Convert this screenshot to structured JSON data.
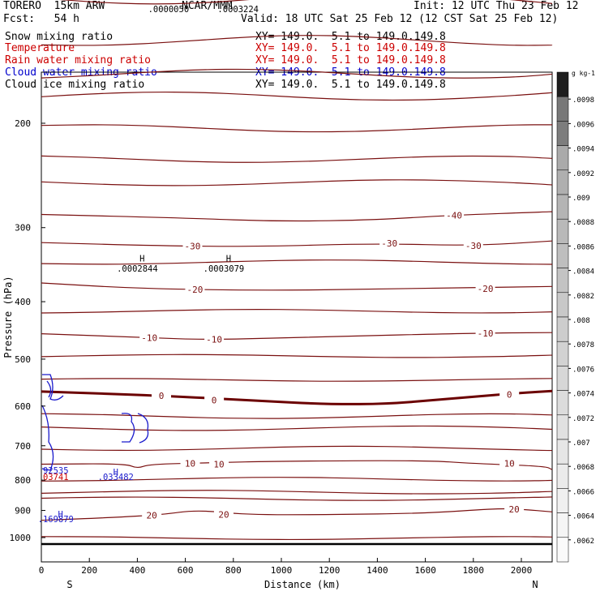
{
  "header": {
    "model": "TORERO  15km ARW",
    "center": "NCAR/MMM",
    "init": "Init: 12 UTC Thu 23 Feb 12",
    "fcst": "Fcst:   54 h",
    "valid": "Valid: 18 UTC Sat 25 Feb 12 (12 CST Sat 25 Feb 12)"
  },
  "fields": [
    {
      "name": "Snow mixing ratio",
      "xy": "XY= 149.0.  5.1 to 149.0.149.8",
      "color": "#000000"
    },
    {
      "name": "Temperature",
      "xy": "XY= 149.0.  5.1 to 149.0.149.8",
      "color": "#cc0000"
    },
    {
      "name": "Rain water mixing ratio",
      "xy": "XY= 149.0.  5.1 to 149.0.149.8",
      "color": "#cc0000"
    },
    {
      "name": "Cloud water mixing ratio",
      "xy": "XY= 149.0.  5.1 to 149.0.149.8",
      "color": "#0000cc"
    },
    {
      "name": "Cloud ice mixing ratio",
      "xy": "XY= 149.0.  5.1 to 149.0.149.8",
      "color": "#000000"
    }
  ],
  "colors": {
    "temperature": "#7a1010",
    "zero_isotherm": "#6b0000",
    "cloud_water": "#1a1acc",
    "ice_labels": "#000000",
    "ground": "#000000"
  },
  "chart_data": {
    "type": "line",
    "xlabel": "Distance (km)",
    "ylabel": "Pressure (hPa)",
    "xlim": [
      0,
      2200
    ],
    "ylim": [
      1050,
      100
    ],
    "yscale": "log",
    "x_ticks": [
      0,
      200,
      400,
      600,
      800,
      1000,
      1200,
      1400,
      1600,
      1800,
      2000
    ],
    "y_ticks": [
      200,
      300,
      400,
      500,
      600,
      700,
      800,
      900,
      1000
    ],
    "x_end_labels": {
      "left": "S",
      "right": "N"
    },
    "temperature_contours": [
      {
        "level": -40,
        "points": [
          [
            0,
            285
          ],
          [
            600,
            289
          ],
          [
            1000,
            293
          ],
          [
            1400,
            291
          ],
          [
            1700,
            286
          ],
          [
            2200,
            282
          ]
        ],
        "label_x": 1720
      },
      {
        "level": -30,
        "points": [
          [
            0,
            318
          ],
          [
            500,
            322
          ],
          [
            900,
            323
          ],
          [
            1400,
            319
          ],
          [
            1800,
            322
          ],
          [
            2200,
            316
          ]
        ],
        "label_x": 630
      },
      {
        "level": -30,
        "points": [],
        "label_x": 1450,
        "label_y": 319
      },
      {
        "level": -30,
        "points": [],
        "label_x": 1800,
        "label_y": 322
      },
      {
        "level": -20,
        "points": [
          [
            0,
            372
          ],
          [
            400,
            380
          ],
          [
            900,
            383
          ],
          [
            1400,
            381
          ],
          [
            2200,
            377
          ]
        ],
        "label_x": 640
      },
      {
        "level": -20,
        "points": [],
        "label_x": 1850,
        "label_y": 380
      },
      {
        "level": -10,
        "points": [
          [
            0,
            453
          ],
          [
            450,
            460
          ],
          [
            700,
            464
          ],
          [
            1200,
            458
          ],
          [
            1800,
            452
          ],
          [
            2200,
            451
          ]
        ],
        "label_x": 450
      },
      {
        "level": -10,
        "points": [],
        "label_x": 720,
        "label_y": 463
      },
      {
        "level": -10,
        "points": [],
        "label_x": 1850,
        "label_y": 452
      },
      {
        "level": 0,
        "points": [
          [
            0,
            567
          ],
          [
            500,
            576
          ],
          [
            900,
            588
          ],
          [
            1200,
            596
          ],
          [
            1450,
            595
          ],
          [
            1700,
            583
          ],
          [
            2000,
            570
          ],
          [
            2200,
            566
          ]
        ],
        "label_x": 500,
        "bold": true
      },
      {
        "level": 0,
        "points": [],
        "label_x": 720,
        "label_y": 586
      },
      {
        "level": 0,
        "points": [],
        "label_x": 1950,
        "label_y": 574
      },
      {
        "level": 10,
        "points": [
          [
            0,
            752
          ],
          [
            350,
            750
          ],
          [
            400,
            765
          ],
          [
            450,
            752
          ],
          [
            700,
            748
          ],
          [
            1000,
            743
          ],
          [
            1600,
            741
          ],
          [
            1800,
            750
          ],
          [
            2100,
            758
          ],
          [
            2200,
            768
          ]
        ],
        "label_x": 620
      },
      {
        "level": 10,
        "points": [],
        "label_x": 740,
        "label_y": 752
      },
      {
        "level": 10,
        "points": [],
        "label_x": 1950,
        "label_y": 750
      },
      {
        "level": 20,
        "points": [
          [
            0,
            935
          ],
          [
            300,
            925
          ],
          [
            500,
            915
          ],
          [
            650,
            898
          ],
          [
            850,
            915
          ],
          [
            1200,
            915
          ],
          [
            1600,
            910
          ],
          [
            1900,
            893
          ],
          [
            2000,
            896
          ],
          [
            2200,
            905
          ]
        ],
        "label_x": 460
      },
      {
        "level": 20,
        "points": [],
        "label_x": 760,
        "label_y": 914
      },
      {
        "level": 20,
        "points": [],
        "label_x": 1970,
        "label_y": 895
      }
    ],
    "unlabeled_isotherms_hPa": [
      125,
      145,
      163,
      182,
      204,
      228,
      254,
      343,
      413,
      496,
      542,
      622,
      656,
      707,
      795,
      840,
      860,
      1000
    ],
    "annotations": [
      {
        "text": ".0000050",
        "x": 530,
        "p": 130,
        "color": "#000000"
      },
      {
        "text": ".0003224",
        "x": 820,
        "p": 130,
        "color": "#000000"
      },
      {
        "text": "H",
        "x": 420,
        "p": 342,
        "color": "#000000"
      },
      {
        "text": ".0002844",
        "x": 400,
        "p": 356,
        "color": "#000000"
      },
      {
        "text": "H",
        "x": 780,
        "p": 342,
        "color": "#000000"
      },
      {
        "text": ".0003079",
        "x": 760,
        "p": 356,
        "color": "#000000"
      },
      {
        "text": "92535",
        "x": 60,
        "p": 780,
        "color": "#1a1acc"
      },
      {
        "text": "03741",
        "x": 60,
        "p": 800,
        "color": "#cc0000"
      },
      {
        "text": "H",
        "x": 310,
        "p": 785,
        "color": "#1a1acc"
      },
      {
        "text": ".033482",
        "x": 310,
        "p": 800,
        "color": "#1a1acc"
      },
      {
        "text": "H",
        "x": 80,
        "p": 925,
        "color": "#1a1acc"
      },
      {
        "text": ".169879",
        "x": 60,
        "p": 942,
        "color": "#1a1acc"
      }
    ],
    "colorbar": {
      "unit": "g kg-1",
      "ticks": [
        ".0098",
        ".0096",
        ".0094",
        ".0092",
        ".009",
        ".0088",
        ".0086",
        ".0084",
        ".0082",
        ".008",
        ".0078",
        ".0076",
        ".0074",
        ".0072",
        ".007",
        ".0068",
        ".0066",
        ".0064",
        ".0062"
      ]
    }
  }
}
